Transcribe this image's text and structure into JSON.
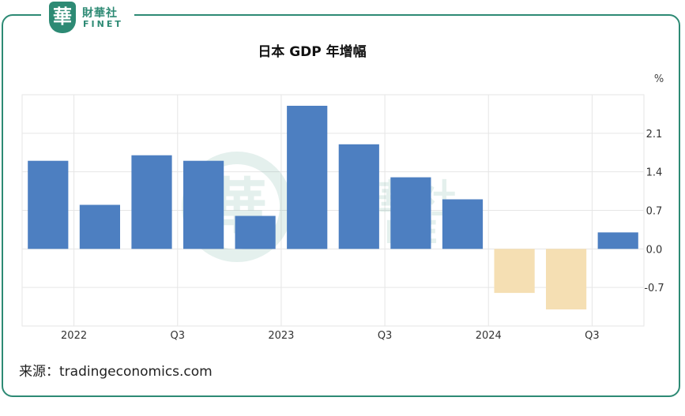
{
  "brand": {
    "char": "華",
    "name_cn": "財華社",
    "name_en": "FINET"
  },
  "chart_data": {
    "type": "bar",
    "title": "日本 GDP 年增幅",
    "unit": "%",
    "categories": [
      "2022 Q1",
      "2022 Q2",
      "2022 Q3",
      "2022 Q4",
      "2023 Q1",
      "2023 Q2",
      "2023 Q3",
      "2023 Q4",
      "2024 Q1",
      "2024 Q2",
      "2024 Q3",
      "2024 Q4"
    ],
    "values": [
      1.6,
      0.8,
      1.7,
      1.6,
      0.6,
      2.6,
      1.9,
      1.3,
      0.9,
      -0.8,
      -1.1,
      0.3
    ],
    "x_tick_labels": [
      {
        "label": "2022",
        "index": 1
      },
      {
        "label": "Q3",
        "index": 3
      },
      {
        "label": "2023",
        "index": 5
      },
      {
        "label": "Q3",
        "index": 7
      },
      {
        "label": "2024",
        "index": 9
      },
      {
        "label": "Q3",
        "index": 11
      }
    ],
    "y_ticks": [
      "2.1",
      "1.4",
      "0.7",
      "0.0",
      "-0.7"
    ],
    "y_tick_values": [
      2.1,
      1.4,
      0.7,
      0.0,
      -0.7
    ],
    "ylim": [
      -1.4,
      2.8
    ],
    "y_axis_side": "right",
    "grid": true,
    "colors": {
      "positive": "#4d7fc1",
      "negative": "#f5dfb3",
      "grid": "#e6e6e6"
    }
  },
  "source_text": "来源：tradingeconomics.com"
}
